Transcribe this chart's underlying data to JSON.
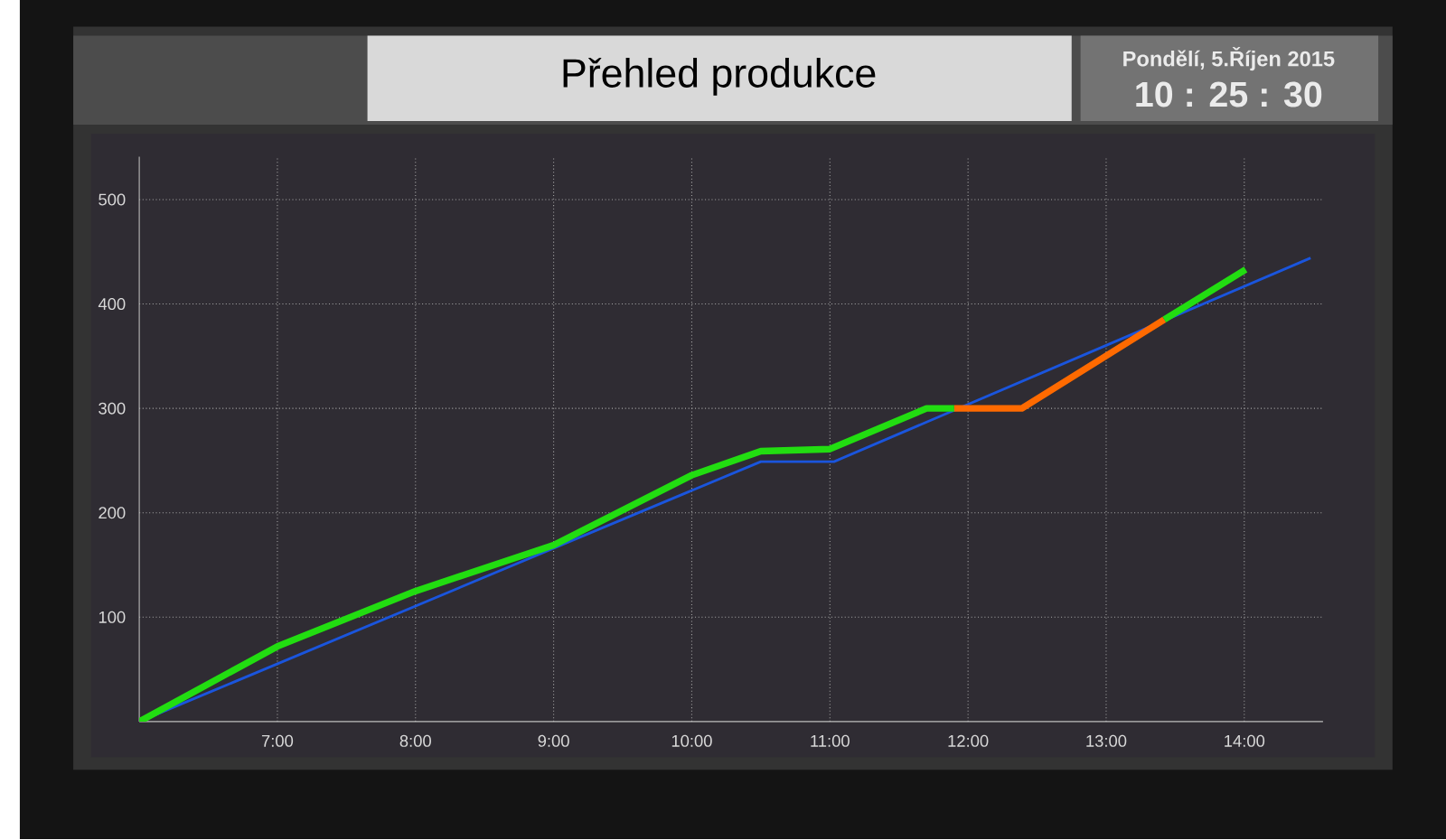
{
  "chart_data": {
    "type": "line",
    "title": "Přehled produkce",
    "annotations": [
      "Pondělí, 5.Říjen 2015",
      "10 : 25 : 30"
    ],
    "xlim": [
      6,
      14.57
    ],
    "ylim": [
      0,
      541
    ],
    "xticks": [
      {
        "value": 7,
        "label": "7:00"
      },
      {
        "value": 8,
        "label": "8:00"
      },
      {
        "value": 9,
        "label": "9:00"
      },
      {
        "value": 10,
        "label": "10:00"
      },
      {
        "value": 11,
        "label": "11:00"
      },
      {
        "value": 12,
        "label": "12:00"
      },
      {
        "value": 13,
        "label": "13:00"
      },
      {
        "value": 14,
        "label": "14:00"
      }
    ],
    "yticks": [
      100,
      200,
      300,
      400,
      500
    ],
    "grid": true,
    "marker": "none",
    "line_style": "solid",
    "series": [
      {
        "color": "#1a55dd",
        "x": [
          6,
          10.5,
          11.03,
          14.48
        ],
        "values": [
          0,
          249,
          249,
          444
        ]
      },
      {
        "color": "#22dd11",
        "x": [
          6,
          7,
          8,
          9,
          10,
          10.5,
          11,
          11.7,
          11.9,
          12.4,
          13.42,
          14.01
        ],
        "values": [
          0,
          72,
          125,
          169,
          236,
          259,
          261,
          300,
          300,
          null,
          385,
          433
        ]
      },
      {
        "color": "#ff6a00",
        "x": [
          11.9,
          12.39,
          13.42
        ],
        "values": [
          300,
          300,
          385
        ]
      }
    ]
  }
}
